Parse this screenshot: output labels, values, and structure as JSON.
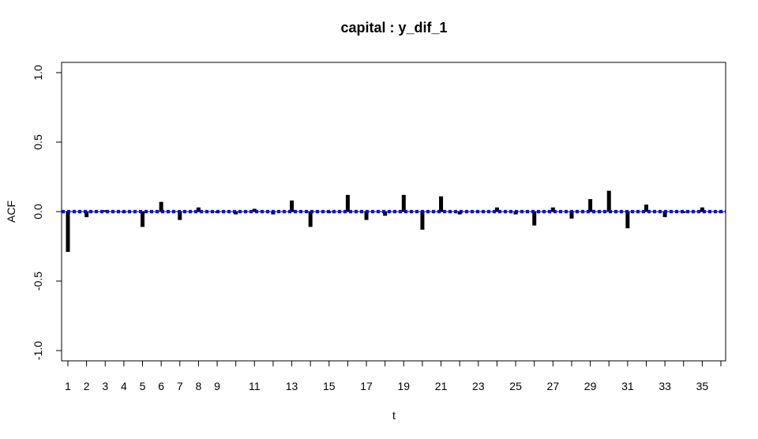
{
  "chart_data": {
    "type": "bar",
    "title": "capital : y_dif_1",
    "xlabel": "t",
    "ylabel": "ACF",
    "ylim": [
      -1.0,
      1.0
    ],
    "xlim": [
      1,
      36
    ],
    "yticks": [
      -1.0,
      -0.5,
      0.0,
      0.5,
      1.0
    ],
    "ytick_labels": [
      "-1.0",
      "-0.5",
      "0.0",
      "0.5",
      "1.0"
    ],
    "xtick_labels": [
      "1",
      "2",
      "3",
      "4",
      "5",
      "6",
      "7",
      "8",
      "9",
      "11",
      "13",
      "15",
      "17",
      "19",
      "21",
      "23",
      "25",
      "27",
      "29",
      "31",
      "33",
      "35"
    ],
    "grid": false,
    "confidence_band": [
      -0.008,
      0.008
    ],
    "colors": {
      "bars": "#000000",
      "band": "#0000ff",
      "axis": "#000000"
    },
    "series": [
      {
        "x": [
          1,
          2,
          3,
          4,
          5,
          6,
          7,
          8,
          9,
          10,
          11,
          12,
          13,
          14,
          15,
          16,
          17,
          18,
          19,
          20,
          21,
          22,
          23,
          24,
          25,
          26,
          27,
          28,
          29,
          30,
          31,
          32,
          33,
          34,
          35,
          36
        ],
        "values": [
          -0.29,
          -0.04,
          0.01,
          -0.01,
          -0.11,
          0.07,
          -0.06,
          0.03,
          -0.01,
          -0.02,
          0.02,
          -0.02,
          0.08,
          -0.11,
          -0.01,
          0.12,
          -0.06,
          -0.03,
          0.12,
          -0.13,
          0.11,
          -0.02,
          0.0,
          0.03,
          -0.02,
          -0.1,
          0.03,
          -0.05,
          0.09,
          0.15,
          -0.12,
          0.05,
          -0.04,
          -0.01,
          0.03,
          -0.01
        ]
      }
    ]
  }
}
